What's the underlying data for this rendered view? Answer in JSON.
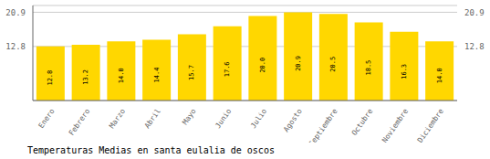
{
  "chart_data": {
    "type": "bar",
    "title": "Temperaturas Medias en santa eulalia de oscos",
    "categories": [
      "Enero",
      "Febrero",
      "Marzo",
      "Abril",
      "Mayo",
      "Junio",
      "Julio",
      "Agosto",
      "Septiembre",
      "Octubre",
      "Noviembre",
      "Diciembre"
    ],
    "values": [
      12.8,
      13.2,
      14.0,
      14.4,
      15.7,
      17.6,
      20.0,
      20.9,
      20.5,
      18.5,
      16.3,
      14.0
    ],
    "value_labels": [
      "12.8",
      "13.2",
      "14.0",
      "14.4",
      "15.7",
      "17.6",
      "20.0",
      "20.9",
      "20.5",
      "18.5",
      "16.3",
      "14.0"
    ],
    "color": "#FFD700",
    "ylim": [
      0,
      22.5
    ],
    "yticks": [
      12.8,
      20.9
    ],
    "grid": true,
    "data_labels": true
  }
}
